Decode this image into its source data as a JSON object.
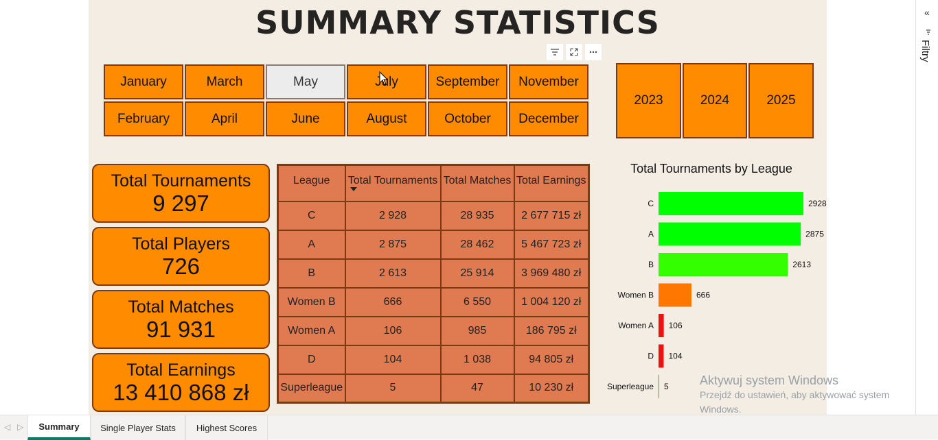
{
  "title": "SUMMARY STATISTICS",
  "month_slicer": {
    "row1": [
      "January",
      "March",
      "May",
      "July",
      "September",
      "November"
    ],
    "row2": [
      "February",
      "April",
      "June",
      "August",
      "October",
      "December"
    ],
    "selected": "May"
  },
  "year_slicer": [
    "2023",
    "2024",
    "2025"
  ],
  "visual_toolbar_icons": [
    "filter-icon",
    "focus-mode-icon",
    "more-options-icon"
  ],
  "kpis": [
    {
      "label": "Total Tournaments",
      "value": "9 297"
    },
    {
      "label": "Total Players",
      "value": "726"
    },
    {
      "label": "Total Matches",
      "value": "91 931"
    },
    {
      "label": "Total Earnings",
      "value": "13 410 868 zł"
    }
  ],
  "table": {
    "headers": [
      "League",
      "Total Tournaments",
      "Total Matches",
      "Total Earnings"
    ],
    "sorted_column": "Total Tournaments",
    "sort_direction": "descending",
    "rows": [
      [
        "C",
        "2 928",
        "28 935",
        "2 677 715 zł"
      ],
      [
        "A",
        "2 875",
        "28 462",
        "5 467 723 zł"
      ],
      [
        "B",
        "2 613",
        "25 914",
        "3 969 480 zł"
      ],
      [
        "Women B",
        "666",
        "6 550",
        "1 004 120 zł"
      ],
      [
        "Women A",
        "106",
        "985",
        "186 795 zł"
      ],
      [
        "D",
        "104",
        "1 038",
        "94 805 zł"
      ],
      [
        "Superleague",
        "5",
        "47",
        "10 230 zł"
      ]
    ]
  },
  "chart_data": {
    "type": "bar",
    "orientation": "horizontal",
    "title": "Total Tournaments by League",
    "categories": [
      "C",
      "A",
      "B",
      "Women B",
      "Women A",
      "D",
      "Superleague"
    ],
    "values": [
      2928,
      2875,
      2613,
      666,
      106,
      104,
      5
    ],
    "bar_colors": [
      "#00ff00",
      "#00ff00",
      "#33ff00",
      "#ff7700",
      "#ee1111",
      "#ee1111",
      "#ff4444"
    ],
    "data_labels": true,
    "xlim": [
      0,
      2928
    ],
    "grid": false,
    "legend": "none"
  },
  "watermark": {
    "title": "Aktywuj system Windows",
    "subtitle": "Przejdź do ustawień, aby aktywować system Windows."
  },
  "filters_pane": {
    "label": "Filtry"
  },
  "tabs": [
    {
      "label": "Summary",
      "active": true
    },
    {
      "label": "Single Player Stats",
      "active": false
    },
    {
      "label": "Highest Scores",
      "active": false
    }
  ]
}
